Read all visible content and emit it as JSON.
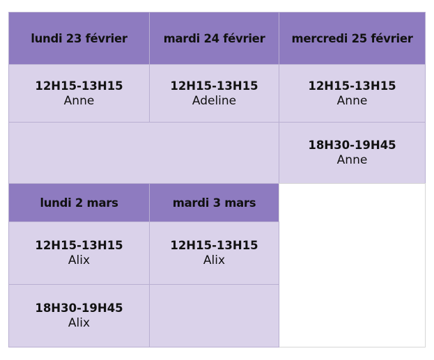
{
  "week1": {
    "headers": [
      "lundi 23 février",
      "mardi 24 février",
      "mercredi 25 février"
    ],
    "slots": [
      {
        "time": "12H15-13H15",
        "name": "Anne"
      },
      {
        "time": "12H15-13H15",
        "name": "Adeline"
      },
      {
        "time": "12H15-13H15",
        "name": "Anne"
      },
      {
        "time": "18H30-19H45",
        "name": "Anne"
      }
    ]
  },
  "week2": {
    "headers": [
      "lundi 2 mars",
      "mardi 3 mars"
    ],
    "slots": [
      {
        "time": "12H15-13H15",
        "name": "Alix"
      },
      {
        "time": "12H15-13H15",
        "name": "Alix"
      },
      {
        "time": "18H30-19H45",
        "name": "Alix"
      }
    ]
  },
  "colors": {
    "header": "#8e7bc0",
    "cell": "#dad2ea",
    "border": "#b9afd1"
  }
}
